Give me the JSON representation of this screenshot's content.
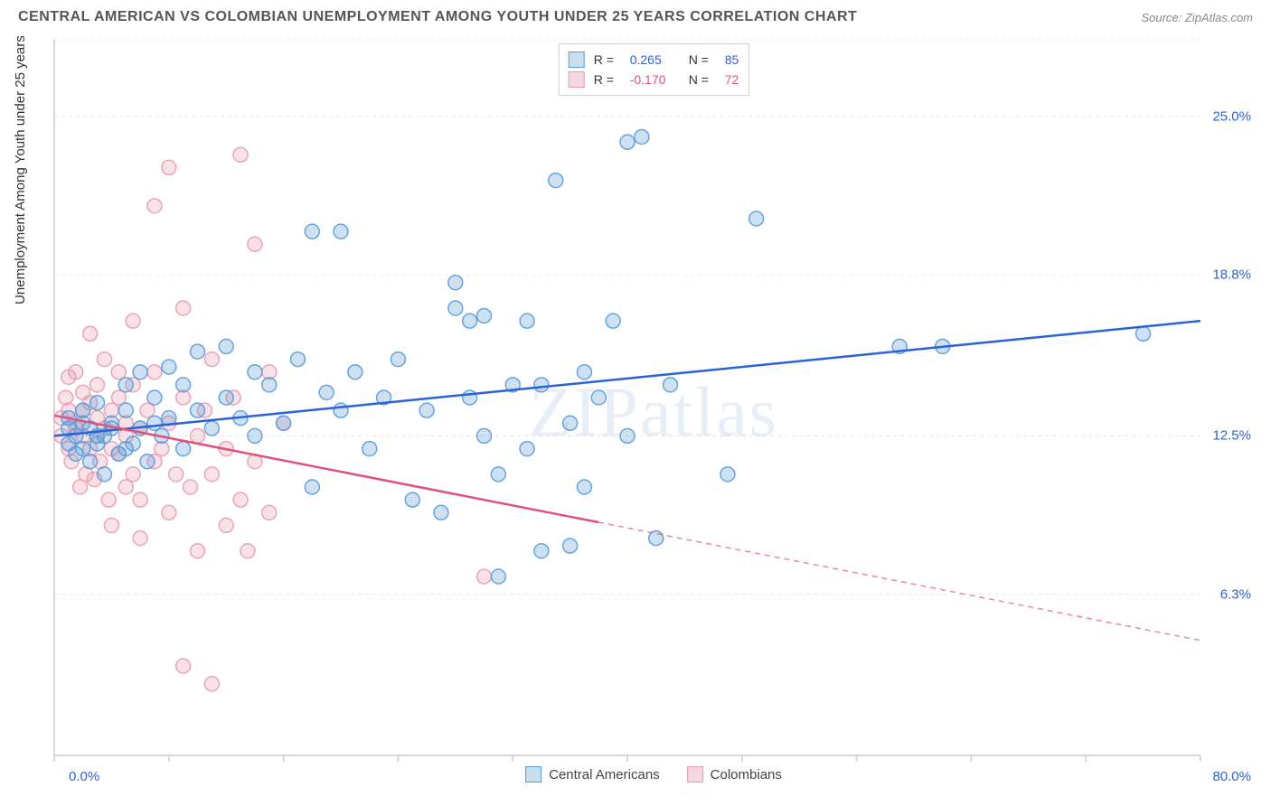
{
  "header": {
    "title": "CENTRAL AMERICAN VS COLOMBIAN UNEMPLOYMENT AMONG YOUTH UNDER 25 YEARS CORRELATION CHART",
    "source": "Source: ZipAtlas.com"
  },
  "chart": {
    "type": "scatter",
    "ylabel": "Unemployment Among Youth under 25 years",
    "watermark": "ZIPatlas",
    "background_color": "#ffffff",
    "grid_color": "#e5e5e5",
    "axis_color": "#cccccc",
    "xlim": [
      0,
      80
    ],
    "ylim": [
      0,
      28
    ],
    "x_min_label": "0.0%",
    "x_max_label": "80.0%",
    "x_label_color": "#2962d9",
    "yticks": [
      {
        "v": 6.3,
        "label": "6.3%"
      },
      {
        "v": 12.5,
        "label": "12.5%"
      },
      {
        "v": 18.8,
        "label": "18.8%"
      },
      {
        "v": 25.0,
        "label": "25.0%"
      }
    ],
    "ytick_color": "#2962d9",
    "xtick_positions": [
      0,
      8,
      16,
      24,
      32,
      40,
      48,
      56,
      64,
      72,
      80
    ],
    "marker_radius": 8,
    "marker_stroke_width": 1.5,
    "marker_fill_opacity": 0.3,
    "line_width": 2.5,
    "series": [
      {
        "name": "Central Americans",
        "color": "#5a9bd8",
        "line_color": "#2962d9",
        "r": "0.265",
        "n": "85",
        "trend": {
          "x1": 0,
          "y1": 12.5,
          "x2": 80,
          "y2": 17.0,
          "solid_until": 80
        },
        "points": [
          [
            1,
            12.2
          ],
          [
            1,
            12.8
          ],
          [
            1,
            13.2
          ],
          [
            1.5,
            11.8
          ],
          [
            1.5,
            12.5
          ],
          [
            2,
            12.0
          ],
          [
            2,
            13.0
          ],
          [
            2,
            13.5
          ],
          [
            2.5,
            11.5
          ],
          [
            2.5,
            12.8
          ],
          [
            3,
            12.2
          ],
          [
            3,
            12.5
          ],
          [
            3,
            13.8
          ],
          [
            3.5,
            11.0
          ],
          [
            3.5,
            12.5
          ],
          [
            4,
            12.8
          ],
          [
            4,
            13.0
          ],
          [
            4.5,
            11.8
          ],
          [
            5,
            12.0
          ],
          [
            5,
            13.5
          ],
          [
            5,
            14.5
          ],
          [
            5.5,
            12.2
          ],
          [
            6,
            12.8
          ],
          [
            6,
            15.0
          ],
          [
            6.5,
            11.5
          ],
          [
            7,
            13.0
          ],
          [
            7,
            14.0
          ],
          [
            7.5,
            12.5
          ],
          [
            8,
            13.2
          ],
          [
            8,
            15.2
          ],
          [
            9,
            12.0
          ],
          [
            9,
            14.5
          ],
          [
            10,
            13.5
          ],
          [
            10,
            15.8
          ],
          [
            11,
            12.8
          ],
          [
            12,
            14.0
          ],
          [
            12,
            16.0
          ],
          [
            13,
            13.2
          ],
          [
            14,
            15.0
          ],
          [
            14,
            12.5
          ],
          [
            15,
            14.5
          ],
          [
            16,
            13.0
          ],
          [
            17,
            15.5
          ],
          [
            18,
            10.5
          ],
          [
            18,
            20.5
          ],
          [
            19,
            14.2
          ],
          [
            20,
            13.5
          ],
          [
            20,
            20.5
          ],
          [
            21,
            15.0
          ],
          [
            22,
            12.0
          ],
          [
            23,
            14.0
          ],
          [
            24,
            15.5
          ],
          [
            25,
            10.0
          ],
          [
            26,
            13.5
          ],
          [
            27,
            9.5
          ],
          [
            28,
            17.5
          ],
          [
            28,
            18.5
          ],
          [
            29,
            14.0
          ],
          [
            29,
            17.0
          ],
          [
            30,
            12.5
          ],
          [
            30,
            17.2
          ],
          [
            31,
            11.0
          ],
          [
            31,
            7.0
          ],
          [
            32,
            14.5
          ],
          [
            33,
            12.0
          ],
          [
            33,
            17.0
          ],
          [
            34,
            8.0
          ],
          [
            34,
            14.5
          ],
          [
            35,
            22.5
          ],
          [
            36,
            13.0
          ],
          [
            36,
            8.2
          ],
          [
            37,
            15.0
          ],
          [
            37,
            10.5
          ],
          [
            38,
            14.0
          ],
          [
            39,
            17.0
          ],
          [
            40,
            12.5
          ],
          [
            40,
            24.0
          ],
          [
            41,
            24.2
          ],
          [
            42,
            8.5
          ],
          [
            43,
            14.5
          ],
          [
            47,
            11.0
          ],
          [
            49,
            21.0
          ],
          [
            59,
            16.0
          ],
          [
            62,
            16.0
          ],
          [
            76,
            16.5
          ]
        ]
      },
      {
        "name": "Colombians",
        "color": "#e89cb0",
        "line_color": "#e0527c",
        "r": "-0.170",
        "n": "72",
        "trend": {
          "x1": 0,
          "y1": 13.3,
          "x2": 80,
          "y2": 4.5,
          "solid_until": 38
        },
        "points": [
          [
            0.5,
            12.5
          ],
          [
            0.5,
            13.2
          ],
          [
            0.8,
            14.0
          ],
          [
            1,
            12.0
          ],
          [
            1,
            13.5
          ],
          [
            1,
            14.8
          ],
          [
            1.2,
            11.5
          ],
          [
            1.5,
            12.8
          ],
          [
            1.5,
            13.0
          ],
          [
            1.5,
            15.0
          ],
          [
            1.8,
            10.5
          ],
          [
            2,
            12.5
          ],
          [
            2,
            13.5
          ],
          [
            2,
            14.2
          ],
          [
            2.2,
            11.0
          ],
          [
            2.5,
            12.0
          ],
          [
            2.5,
            13.8
          ],
          [
            2.5,
            16.5
          ],
          [
            2.8,
            10.8
          ],
          [
            3,
            12.5
          ],
          [
            3,
            13.2
          ],
          [
            3,
            14.5
          ],
          [
            3.2,
            11.5
          ],
          [
            3.5,
            12.8
          ],
          [
            3.5,
            15.5
          ],
          [
            3.8,
            10.0
          ],
          [
            4,
            12.0
          ],
          [
            4,
            13.5
          ],
          [
            4,
            9.0
          ],
          [
            4.5,
            11.8
          ],
          [
            4.5,
            14.0
          ],
          [
            4.5,
            15.0
          ],
          [
            5,
            10.5
          ],
          [
            5,
            12.5
          ],
          [
            5,
            13.0
          ],
          [
            5.5,
            11.0
          ],
          [
            5.5,
            14.5
          ],
          [
            5.5,
            17.0
          ],
          [
            6,
            10.0
          ],
          [
            6,
            12.8
          ],
          [
            6,
            8.5
          ],
          [
            6.5,
            13.5
          ],
          [
            7,
            11.5
          ],
          [
            7,
            15.0
          ],
          [
            7,
            21.5
          ],
          [
            7.5,
            12.0
          ],
          [
            8,
            9.5
          ],
          [
            8,
            13.0
          ],
          [
            8,
            23.0
          ],
          [
            8.5,
            11.0
          ],
          [
            9,
            14.0
          ],
          [
            9,
            3.5
          ],
          [
            9,
            17.5
          ],
          [
            9.5,
            10.5
          ],
          [
            10,
            12.5
          ],
          [
            10,
            8.0
          ],
          [
            10.5,
            13.5
          ],
          [
            11,
            11.0
          ],
          [
            11,
            15.5
          ],
          [
            11,
            2.8
          ],
          [
            12,
            9.0
          ],
          [
            12,
            12.0
          ],
          [
            12.5,
            14.0
          ],
          [
            13,
            10.0
          ],
          [
            13,
            23.5
          ],
          [
            13.5,
            8.0
          ],
          [
            14,
            11.5
          ],
          [
            14,
            20.0
          ],
          [
            15,
            9.5
          ],
          [
            15,
            15.0
          ],
          [
            16,
            13.0
          ],
          [
            30,
            7.0
          ]
        ]
      }
    ],
    "legend_bottom": [
      {
        "label": "Central Americans",
        "sw_fill": "#c9deef",
        "sw_border": "#5a9bd8"
      },
      {
        "label": "Colombians",
        "sw_fill": "#f6d6df",
        "sw_border": "#e89cb0"
      }
    ],
    "legend_top": [
      {
        "sw_fill": "#c9deef",
        "sw_border": "#5a9bd8",
        "r_color": "#2962d9",
        "r": "0.265",
        "n_color": "#2962d9",
        "n": "85"
      },
      {
        "sw_fill": "#f6d6df",
        "sw_border": "#e89cb0",
        "r_color": "#e0527c",
        "r": "-0.170",
        "n_color": "#e0527c",
        "n": "72"
      }
    ]
  }
}
